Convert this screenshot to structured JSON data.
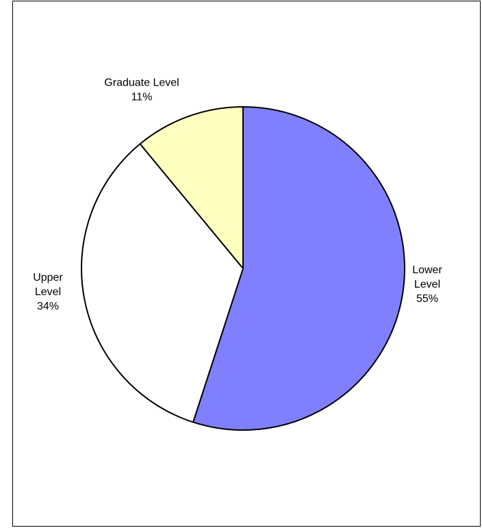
{
  "chart_data": {
    "type": "pie",
    "title": "",
    "slices": [
      {
        "name": "Lower Level",
        "value": 55,
        "color": "#8080ff",
        "label_lines": [
          "Lower",
          "Level",
          "55%"
        ]
      },
      {
        "name": "Upper Level",
        "value": 34,
        "color": "#ffffff",
        "label_lines": [
          "Upper",
          "Level",
          "34%"
        ]
      },
      {
        "name": "Graduate Level",
        "value": 11,
        "color": "#ffffc0",
        "label_lines": [
          "Graduate Level",
          "11%"
        ]
      }
    ],
    "start_angle": "12 o'clock",
    "direction": "clockwise",
    "border_color": "#000000",
    "legend": "none"
  }
}
